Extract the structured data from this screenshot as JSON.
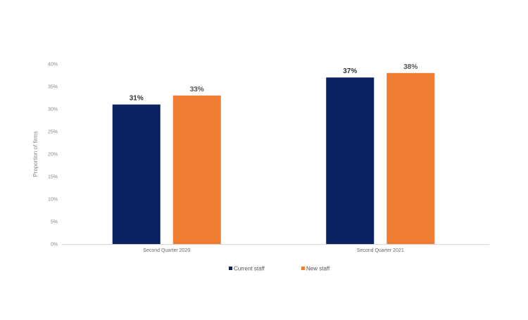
{
  "chart_data": {
    "type": "bar",
    "title": "",
    "xlabel": "",
    "ylabel": "Proportion of firms",
    "ylim": [
      0,
      40
    ],
    "yticks": [
      "0%",
      "5%",
      "10%",
      "15%",
      "20%",
      "25%",
      "30%",
      "35%",
      "40%"
    ],
    "categories": [
      "Second Quarter 2020",
      "Second Quarter 2021"
    ],
    "series": [
      {
        "name": "Current staff",
        "color": "#0b2160",
        "values": [
          31,
          37
        ],
        "labels": [
          "31%",
          "37%"
        ]
      },
      {
        "name": "New staff",
        "color": "#ee7d31",
        "values": [
          33,
          38
        ],
        "labels": [
          "33%",
          "38%"
        ]
      }
    ],
    "grid": false,
    "legend": "bottom-center"
  }
}
